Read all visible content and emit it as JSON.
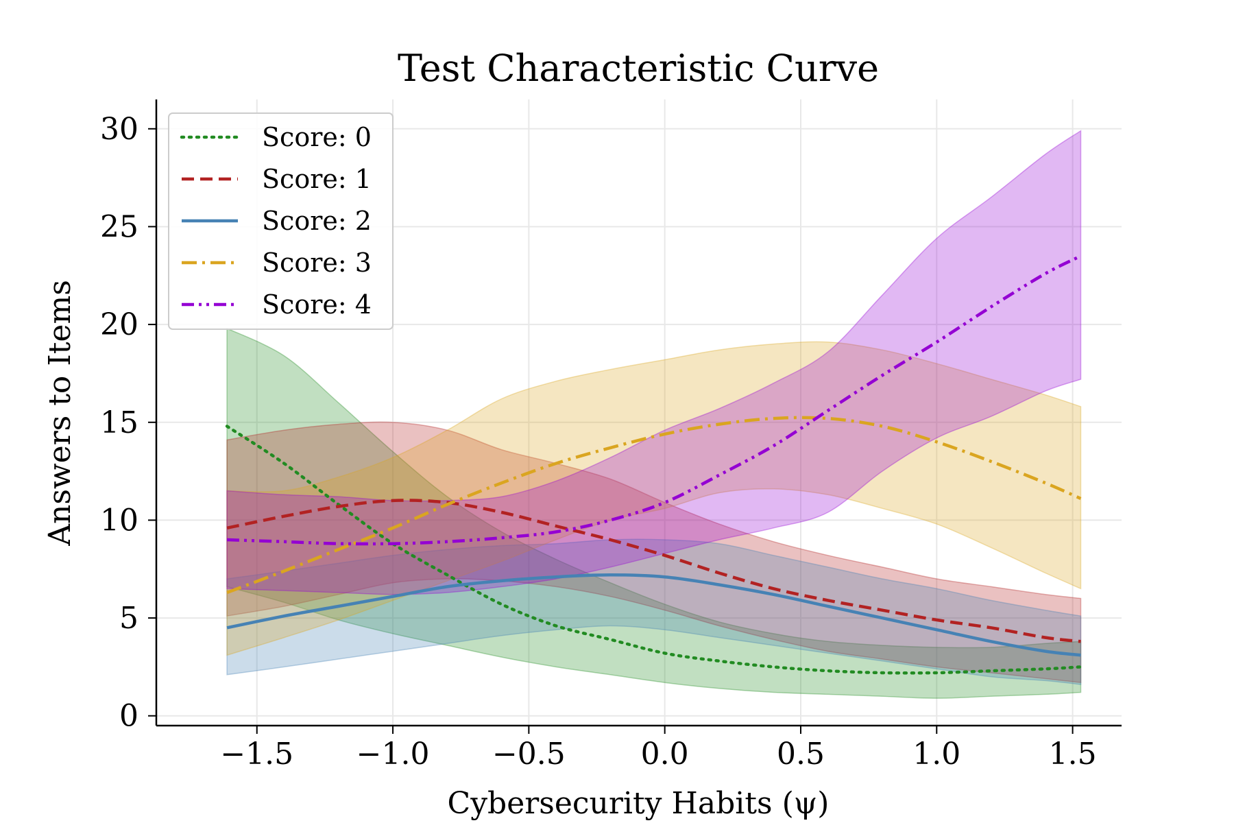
{
  "chart_data": {
    "type": "line",
    "title": "Test Characteristic Curve",
    "xlabel": "Cybersecurity Habits (ψ)",
    "ylabel": "Answers to Items",
    "xlim": [
      -1.87,
      1.68
    ],
    "ylim": [
      -0.5,
      31.5
    ],
    "xticks": [
      -1.5,
      -1.0,
      -0.5,
      0.0,
      0.5,
      1.0,
      1.5
    ],
    "xtick_labels": [
      "−1.5",
      "−1.0",
      "−0.5",
      "0.0",
      "0.5",
      "1.0",
      "1.5"
    ],
    "yticks": [
      0,
      5,
      10,
      15,
      20,
      25,
      30
    ],
    "ytick_labels": [
      "0",
      "5",
      "10",
      "15",
      "20",
      "25",
      "30"
    ],
    "grid": true,
    "legend_position": "upper left",
    "x": [
      -1.61,
      -1.4,
      -1.2,
      -1.0,
      -0.8,
      -0.6,
      -0.4,
      -0.2,
      0.0,
      0.2,
      0.4,
      0.6,
      0.8,
      1.0,
      1.2,
      1.4,
      1.53
    ],
    "series": [
      {
        "name": "Score: 0",
        "color": "#228b22",
        "dash": "dotted",
        "values": [
          14.8,
          12.9,
          10.8,
          8.8,
          7.2,
          5.7,
          4.6,
          3.9,
          3.2,
          2.8,
          2.5,
          2.3,
          2.2,
          2.2,
          2.3,
          2.4,
          2.5
        ],
        "upper": [
          19.8,
          18.4,
          16.0,
          13.5,
          11.2,
          9.4,
          8.0,
          6.8,
          5.7,
          4.8,
          4.2,
          3.8,
          3.6,
          3.5,
          3.5,
          3.7,
          3.8
        ],
        "lower": [
          6.6,
          5.8,
          4.9,
          4.2,
          3.6,
          3.0,
          2.5,
          2.1,
          1.7,
          1.4,
          1.2,
          1.1,
          1.0,
          0.9,
          1.0,
          1.1,
          1.2
        ]
      },
      {
        "name": "Score: 1",
        "color": "#b22222",
        "dash": "dashed",
        "values": [
          9.6,
          10.2,
          10.7,
          11.0,
          10.9,
          10.4,
          9.7,
          9.0,
          8.2,
          7.3,
          6.5,
          5.9,
          5.4,
          4.9,
          4.5,
          4.0,
          3.8
        ],
        "upper": [
          14.1,
          14.6,
          14.9,
          15.0,
          14.6,
          13.6,
          12.9,
          12.1,
          10.9,
          9.8,
          8.9,
          8.2,
          7.6,
          7.0,
          6.6,
          6.2,
          6.0
        ],
        "lower": [
          5.1,
          5.6,
          6.2,
          6.8,
          7.0,
          6.9,
          6.6,
          6.1,
          5.4,
          4.6,
          3.9,
          3.3,
          2.9,
          2.5,
          2.2,
          1.9,
          1.7
        ]
      },
      {
        "name": "Score: 2",
        "color": "#4682b4",
        "dash": "solid",
        "values": [
          4.5,
          5.1,
          5.6,
          6.1,
          6.6,
          6.9,
          7.1,
          7.2,
          7.1,
          6.7,
          6.2,
          5.6,
          5.0,
          4.4,
          3.8,
          3.3,
          3.1
        ],
        "upper": [
          7.0,
          7.4,
          7.8,
          8.2,
          8.5,
          8.7,
          8.8,
          9.0,
          9.0,
          8.8,
          8.2,
          7.6,
          7.0,
          6.5,
          5.9,
          5.4,
          5.1
        ],
        "lower": [
          2.1,
          2.5,
          2.9,
          3.3,
          3.7,
          4.1,
          4.4,
          4.6,
          4.4,
          4.0,
          3.6,
          3.2,
          2.8,
          2.4,
          2.0,
          1.8,
          1.6
        ]
      },
      {
        "name": "Score: 3",
        "color": "#daa520",
        "dash": "dashdot",
        "values": [
          6.3,
          7.4,
          8.5,
          9.6,
          10.8,
          11.9,
          12.9,
          13.7,
          14.4,
          14.9,
          15.2,
          15.2,
          14.8,
          14.0,
          13.0,
          11.9,
          11.1
        ],
        "upper": [
          11.5,
          11.5,
          12.2,
          13.2,
          14.6,
          16.2,
          17.1,
          17.7,
          18.2,
          18.7,
          19.0,
          19.1,
          18.7,
          18.0,
          17.2,
          16.4,
          15.8
        ],
        "lower": [
          3.1,
          4.0,
          4.9,
          5.9,
          6.9,
          7.9,
          9.0,
          10.0,
          10.6,
          11.4,
          11.6,
          11.3,
          10.6,
          9.8,
          8.6,
          7.3,
          6.5
        ]
      },
      {
        "name": "Score: 4",
        "color": "#9400d3",
        "dash": "dashdotdot",
        "values": [
          9.0,
          8.9,
          8.8,
          8.8,
          8.9,
          9.1,
          9.4,
          10.0,
          10.9,
          12.3,
          13.8,
          15.6,
          17.4,
          19.1,
          20.9,
          22.6,
          23.5
        ],
        "upper": [
          11.5,
          11.3,
          11.2,
          11.0,
          11.0,
          11.2,
          12.0,
          13.2,
          14.6,
          15.7,
          17.0,
          18.6,
          21.5,
          24.4,
          26.5,
          28.7,
          29.9
        ],
        "lower": [
          6.5,
          6.4,
          6.3,
          6.2,
          6.3,
          6.6,
          7.0,
          7.6,
          8.3,
          9.0,
          9.6,
          10.4,
          12.5,
          14.2,
          15.3,
          16.6,
          17.2
        ]
      }
    ]
  }
}
